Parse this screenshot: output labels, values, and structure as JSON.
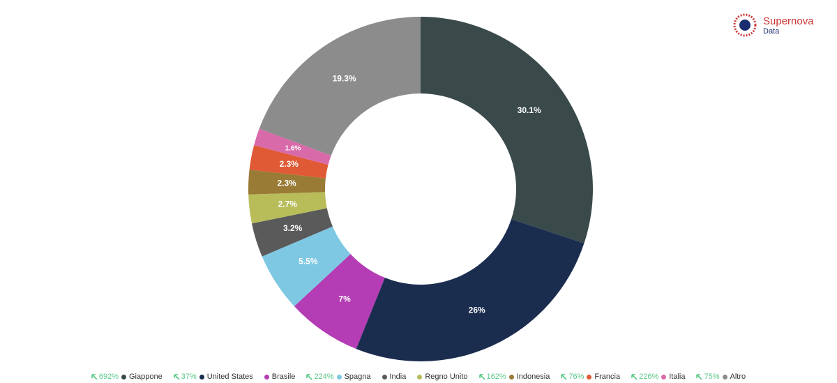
{
  "logo": {
    "name": "Supernova",
    "sub": "Data"
  },
  "chart_data": {
    "type": "donut",
    "categories": [
      "Giappone",
      "United States",
      "Brasile",
      "Spagna",
      "India",
      "Regno Unito",
      "Indonesia",
      "Francia",
      "Italia",
      "Altro"
    ],
    "values": [
      30.1,
      26,
      7,
      5.5,
      3.2,
      2.7,
      2.3,
      2.3,
      1.6,
      19.3
    ],
    "value_labels": [
      "30.1%",
      "26%",
      "7%",
      "5.5%",
      "3.2%",
      "2.7%",
      "2.3%",
      "2.3%",
      "1.6%",
      "19.3%"
    ],
    "colors": [
      "#3a4a4b",
      "#1b2d4f",
      "#b43cb4",
      "#7ec8e3",
      "#5a5a5a",
      "#b8bd5a",
      "#9a7b35",
      "#e05a35",
      "#d96aaa",
      "#8c8c8c"
    ],
    "growth": [
      "692%",
      "37%",
      null,
      "224%",
      null,
      null,
      "162%",
      "76%",
      "226%",
      "75%"
    ]
  }
}
